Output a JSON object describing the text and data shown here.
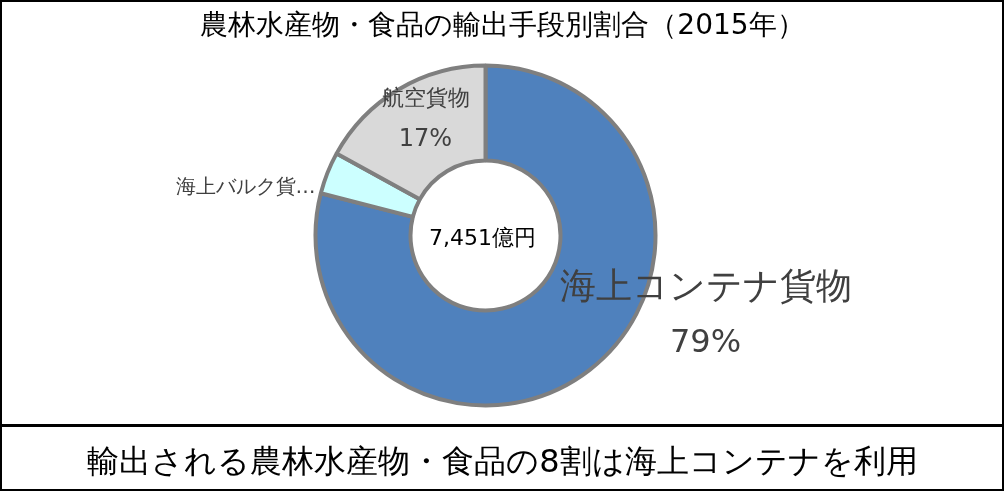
{
  "chart_data": {
    "type": "donut",
    "title": "農林水産物・食品の輸出手段別割合（2015年）",
    "categories": [
      "海上コンテナ貨物",
      "海上バルク貨…",
      "航空貨物"
    ],
    "values": [
      79,
      4,
      17
    ],
    "colors": [
      "#4f81bd",
      "#ccffff",
      "#d9d9d9"
    ],
    "value_labels": [
      "79%",
      null,
      "17%"
    ],
    "annotations": [
      "7,451億円",
      "輸出される農林水産物・食品の8割は海上コンテナを利用"
    ]
  }
}
